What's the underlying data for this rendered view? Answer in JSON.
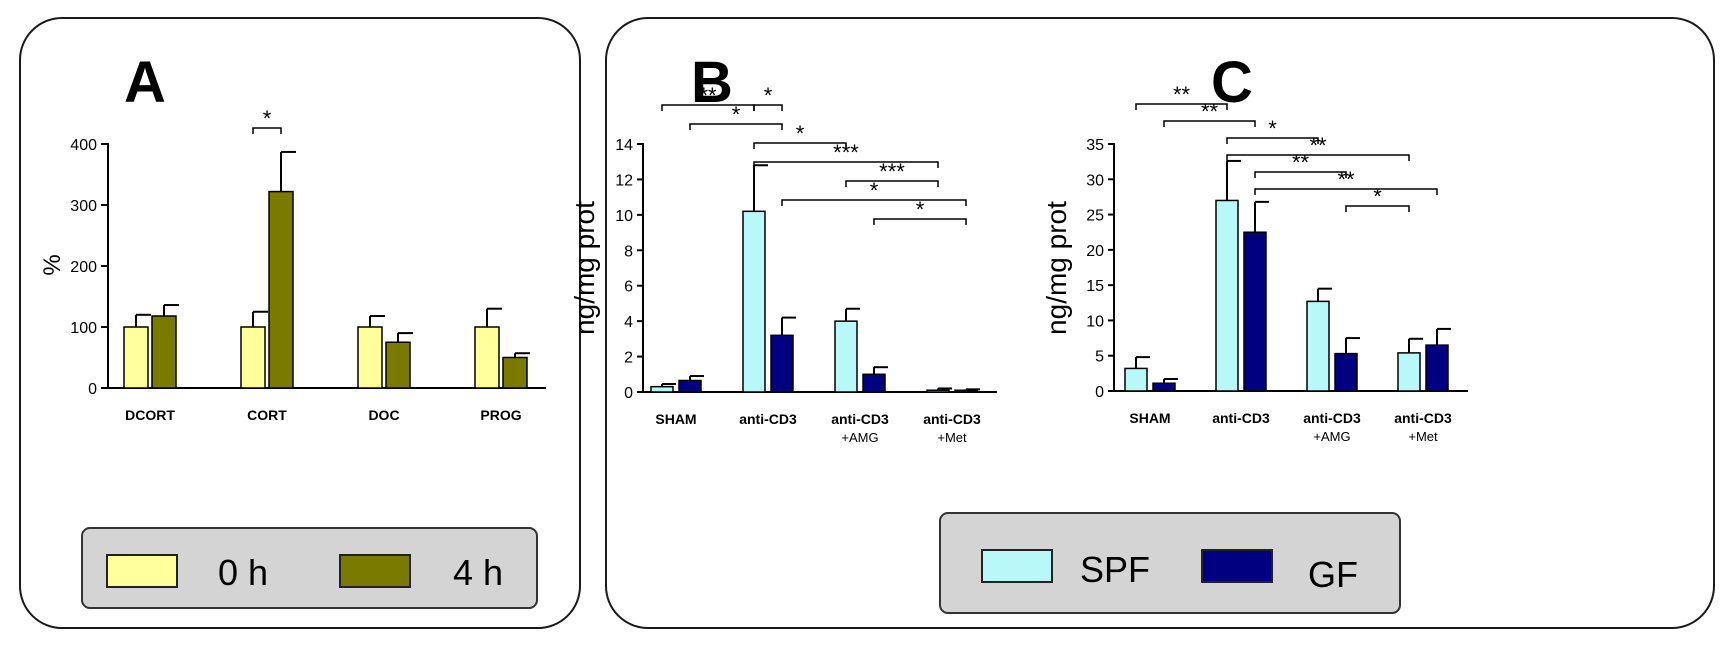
{
  "colors": {
    "h0": "#ffff9c",
    "h4": "#7a7a00",
    "spf": "#b8f8f8",
    "gf": "#000080",
    "legend_bg": "#d4d4d4"
  },
  "legend_a": {
    "items": [
      "0 h",
      "4 h"
    ]
  },
  "legend_bc": {
    "items": [
      "SPF",
      "GF"
    ]
  },
  "chart_data": [
    {
      "panel": "A",
      "type": "bar",
      "ylabel": "%",
      "ylim": [
        0,
        400
      ],
      "yticks": [
        "0",
        "100",
        "200",
        "300",
        "400"
      ],
      "categories": [
        "DCORT",
        "CORT",
        "DOC",
        "PROG"
      ],
      "series": [
        {
          "name": "0 h",
          "values": [
            100,
            100,
            100,
            100
          ],
          "errors": [
            20,
            25,
            18,
            30
          ]
        },
        {
          "name": "4 h",
          "values": [
            118,
            322,
            75,
            50
          ],
          "errors": [
            18,
            65,
            15,
            7
          ]
        }
      ],
      "annotations": [
        {
          "label": "*",
          "from": [
            1,
            0
          ],
          "to": [
            1,
            1
          ],
          "level": 0
        }
      ]
    },
    {
      "panel": "B",
      "type": "bar",
      "ylabel": "ng/mg prot",
      "ylim": [
        0,
        14
      ],
      "yticks": [
        "0",
        "2",
        "4",
        "6",
        "8",
        "10",
        "12",
        "14"
      ],
      "categories": [
        "SHAM",
        "anti-CD3",
        "anti-CD3",
        "anti-CD3"
      ],
      "subcategories": [
        "",
        "",
        "+AMG",
        "+Met"
      ],
      "series": [
        {
          "name": "SPF",
          "values": [
            0.3,
            10.2,
            4.0,
            0.1
          ],
          "errors": [
            0.15,
            2.6,
            0.7,
            0.1
          ]
        },
        {
          "name": "GF",
          "values": [
            0.65,
            3.2,
            1.0,
            0.1
          ],
          "errors": [
            0.25,
            1.0,
            0.4,
            0.05
          ]
        }
      ],
      "annotations": [
        {
          "label": "**",
          "from": [
            0,
            0
          ],
          "to": [
            1,
            0
          ],
          "level": 0
        },
        {
          "label": "*",
          "from": [
            1,
            0
          ],
          "to": [
            1,
            1
          ],
          "level": 0
        },
        {
          "label": "*",
          "from": [
            0,
            1
          ],
          "to": [
            1,
            1
          ],
          "level": 1
        },
        {
          "label": "*",
          "from": [
            1,
            0
          ],
          "to": [
            2,
            0
          ],
          "level": 2
        },
        {
          "label": "***",
          "from": [
            1,
            0
          ],
          "to": [
            3,
            0
          ],
          "level": 3
        },
        {
          "label": "***",
          "from": [
            2,
            0
          ],
          "to": [
            3,
            0
          ],
          "level": 4
        },
        {
          "label": "*",
          "from": [
            1,
            1
          ],
          "to": [
            3,
            1
          ],
          "level": 5
        },
        {
          "label": "*",
          "from": [
            2,
            1
          ],
          "to": [
            3,
            1
          ],
          "level": 6
        }
      ]
    },
    {
      "panel": "C",
      "type": "bar",
      "ylabel": "ng/mg prot",
      "ylim": [
        0,
        35
      ],
      "yticks": [
        "0",
        "5",
        "10",
        "15",
        "20",
        "25",
        "30",
        "35"
      ],
      "categories": [
        "SHAM",
        "anti-CD3",
        "anti-CD3",
        "anti-CD3"
      ],
      "subcategories": [
        "",
        "",
        "+AMG",
        "+Met"
      ],
      "series": [
        {
          "name": "SPF",
          "values": [
            3.2,
            27.0,
            12.7,
            5.4
          ],
          "errors": [
            1.6,
            5.6,
            1.8,
            2.0
          ]
        },
        {
          "name": "GF",
          "values": [
            1.1,
            22.5,
            5.3,
            6.5
          ],
          "errors": [
            0.6,
            4.3,
            2.2,
            2.3
          ]
        }
      ],
      "annotations": [
        {
          "label": "**",
          "from": [
            0,
            0
          ],
          "to": [
            1,
            0
          ],
          "level": 0
        },
        {
          "label": "**",
          "from": [
            0,
            1
          ],
          "to": [
            1,
            1
          ],
          "level": 1
        },
        {
          "label": "*",
          "from": [
            1,
            0
          ],
          "to": [
            2,
            0
          ],
          "level": 2
        },
        {
          "label": "**",
          "from": [
            1,
            0
          ],
          "to": [
            3,
            0
          ],
          "level": 3
        },
        {
          "label": "**",
          "from": [
            1,
            1
          ],
          "to": [
            2,
            1
          ],
          "level": 4
        },
        {
          "label": "**",
          "from": [
            1,
            1
          ],
          "to": [
            3,
            1
          ],
          "level": 5
        },
        {
          "label": "*",
          "from": [
            2,
            1
          ],
          "to": [
            3,
            0
          ],
          "level": 6
        }
      ]
    }
  ]
}
